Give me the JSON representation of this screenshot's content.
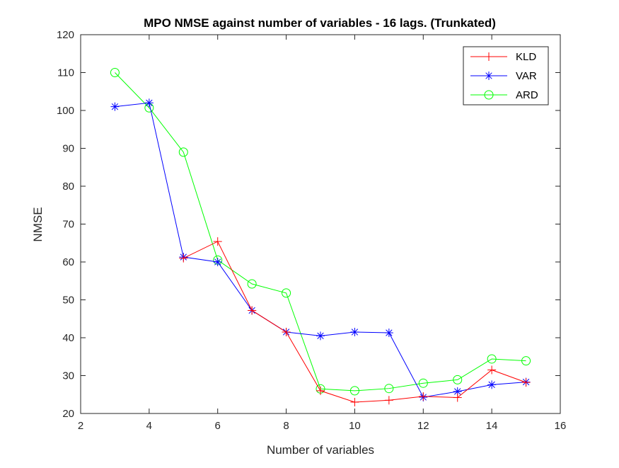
{
  "chart_data": {
    "type": "line",
    "title": "MPO NMSE against number of variables - 16 lags. (Trunkated)",
    "xlabel": "Number of variables",
    "ylabel": "NMSE",
    "xlim": [
      2,
      16
    ],
    "ylim": [
      20,
      120
    ],
    "xticks": [
      2,
      4,
      6,
      8,
      10,
      12,
      14,
      16
    ],
    "yticks": [
      20,
      30,
      40,
      50,
      60,
      70,
      80,
      90,
      100,
      110,
      120
    ],
    "x": [
      3,
      4,
      5,
      6,
      7,
      8,
      9,
      10,
      11,
      12,
      13,
      14,
      15
    ],
    "grid": false,
    "legend_position": "top-right",
    "series": [
      {
        "name": "KLD",
        "color": "#ff0000",
        "marker": "plus",
        "x": [
          5,
          6,
          7,
          8,
          9,
          10,
          11,
          12,
          13,
          14,
          15
        ],
        "values": [
          61,
          65.4,
          47.2,
          41.5,
          26,
          23,
          23.5,
          24.5,
          24.2,
          31.5,
          28.2
        ]
      },
      {
        "name": "VAR",
        "color": "#0000ff",
        "marker": "asterisk",
        "x": [
          3,
          4,
          5,
          6,
          7,
          8,
          9,
          10,
          11,
          12,
          13,
          14,
          15
        ],
        "values": [
          101,
          102,
          61.3,
          60,
          47.2,
          41.5,
          40.5,
          41.5,
          41.3,
          24.3,
          25.8,
          27.6,
          28.3
        ]
      },
      {
        "name": "ARD",
        "color": "#00ff00",
        "marker": "circle",
        "x": [
          3,
          4,
          5,
          6,
          7,
          8,
          9,
          10,
          11,
          12,
          13,
          14,
          15
        ],
        "values": [
          110,
          100.7,
          89,
          60.5,
          54.2,
          51.8,
          26.5,
          26,
          26.6,
          28,
          28.9,
          34.4,
          33.9
        ]
      }
    ]
  }
}
